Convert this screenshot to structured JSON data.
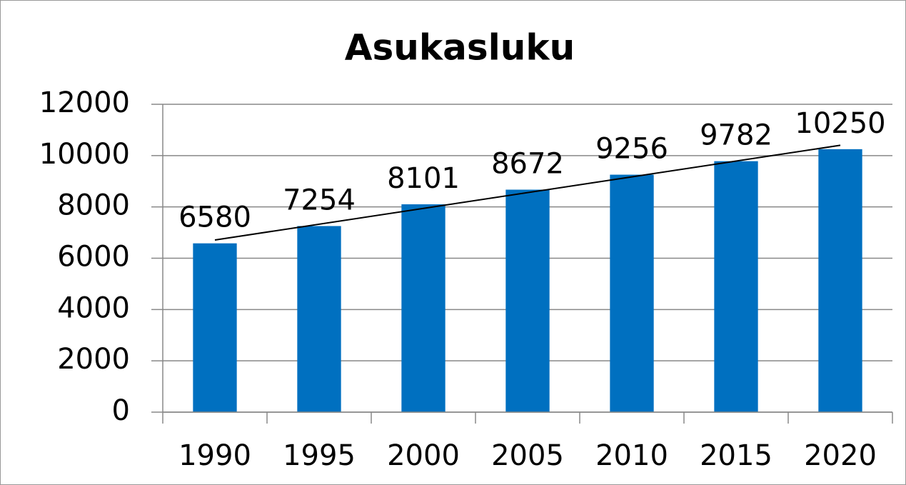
{
  "chart_data": {
    "type": "bar",
    "title": "Asukasluku",
    "categories": [
      "1990",
      "1995",
      "2000",
      "2005",
      "2010",
      "2015",
      "2020"
    ],
    "values": [
      6580,
      7254,
      8101,
      8672,
      9256,
      9782,
      10250
    ],
    "color": "#0070c0",
    "ylim": [
      0,
      12000
    ],
    "yticks": [
      0,
      2000,
      4000,
      6000,
      8000,
      10000,
      12000
    ],
    "grid": true,
    "data_labels": true,
    "trendline": "linear"
  }
}
